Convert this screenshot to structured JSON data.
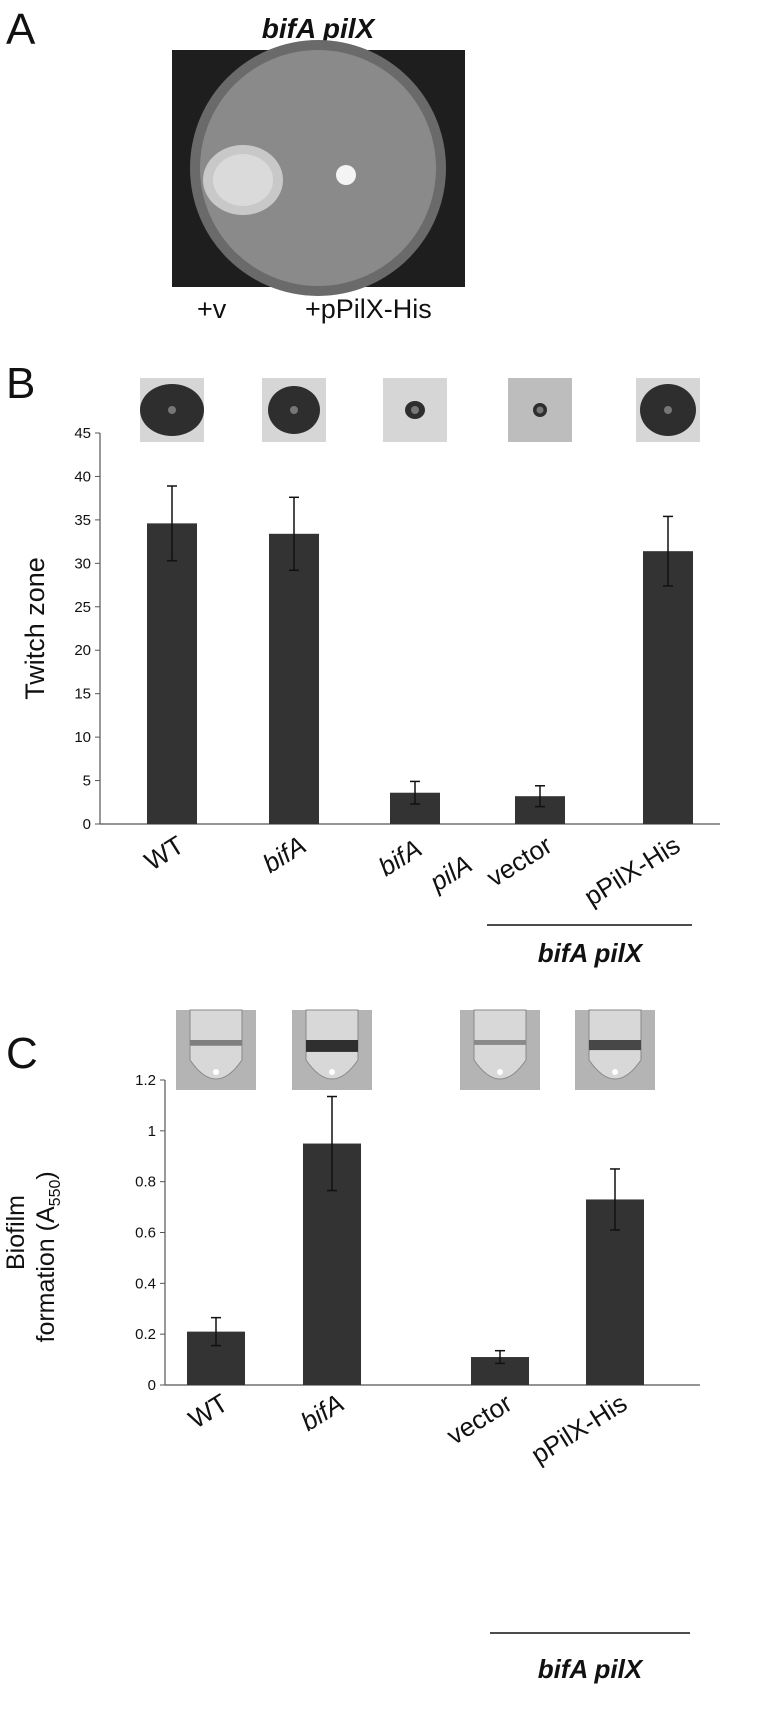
{
  "panel_letters": [
    "A",
    "B",
    "C"
  ],
  "panel_a": {
    "title": "bifA pilX",
    "labels": [
      "+v",
      "+pPilX-His"
    ]
  },
  "chart_data": [
    {
      "type": "bar",
      "ylabel": "Twitch zone",
      "categories": [
        "WT",
        "bifA",
        "bifA pilA",
        "vector",
        "pPilX-His"
      ],
      "category_italic": [
        false,
        true,
        true,
        false,
        false
      ],
      "values": [
        34.6,
        33.4,
        3.6,
        3.2,
        31.4
      ],
      "errors": [
        4.3,
        4.2,
        1.3,
        1.2,
        4.0
      ],
      "color": "#333333",
      "ylim": [
        0,
        45
      ],
      "yticks": [
        0,
        5,
        10,
        15,
        20,
        25,
        30,
        35,
        40,
        45
      ],
      "group_label": "bifA pilX"
    },
    {
      "type": "bar",
      "ylabel_lines": [
        "Biofilm",
        "formation (A"
      ],
      "ylabel_sub": "550",
      "ylabel_end": ")",
      "categories": [
        "WT",
        "bifA",
        "vector",
        "pPilX-His"
      ],
      "category_italic": [
        false,
        true,
        false,
        false
      ],
      "values": [
        0.21,
        0.95,
        0.11,
        0.73
      ],
      "errors": [
        0.055,
        0.185,
        0.025,
        0.12
      ],
      "color": "#333333",
      "ylim": [
        0,
        1.2
      ],
      "yticks": [
        0,
        0.2,
        0.4,
        0.6,
        0.8,
        1,
        1.2
      ],
      "group_label": "bifA pilX"
    }
  ]
}
